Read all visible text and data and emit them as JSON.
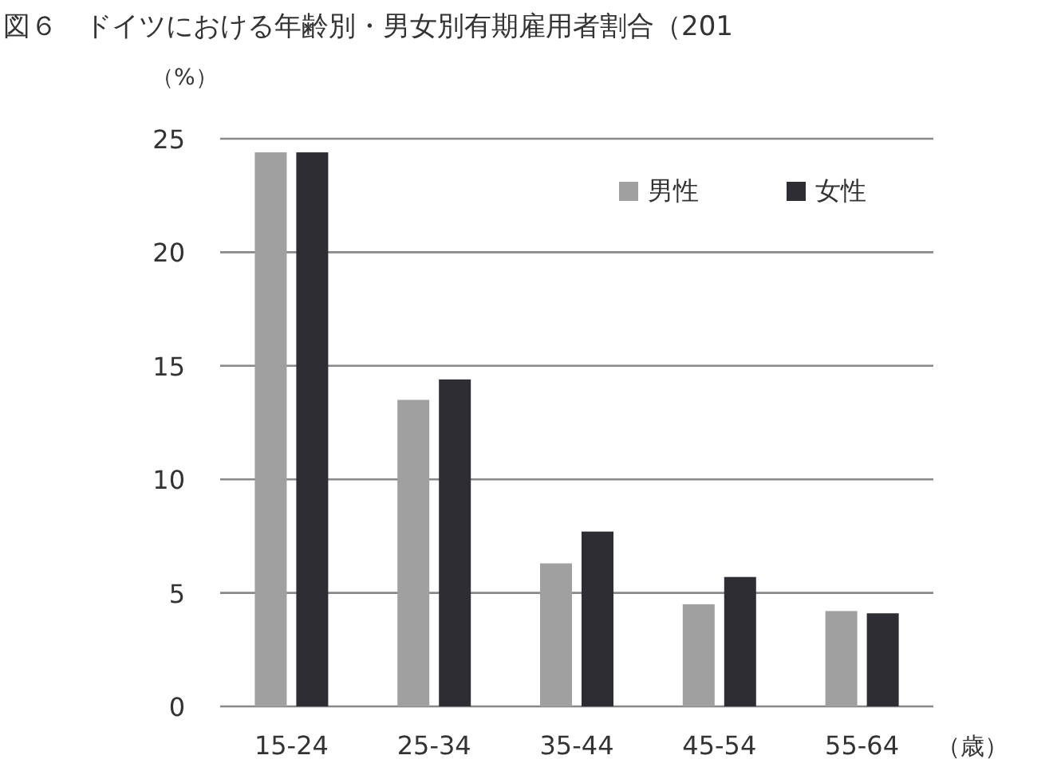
{
  "chart_data": {
    "type": "bar",
    "title": "図６　ドイツにおける年齢別・男女別有期雇用者割合（201",
    "ylabel": "（%）",
    "xlabel": "（歳）",
    "categories": [
      "15-24",
      "25-34",
      "35-44",
      "45-54",
      "55-64"
    ],
    "series": [
      {
        "name": "男性",
        "color": "#a0a0a0",
        "values": [
          24.4,
          13.5,
          6.3,
          4.5,
          4.2
        ]
      },
      {
        "name": "女性",
        "color": "#2d2d33",
        "values": [
          24.4,
          14.4,
          7.7,
          5.7,
          4.1
        ]
      }
    ],
    "ylim": [
      0,
      25
    ],
    "yticks": [
      0,
      5,
      10,
      15,
      20,
      25
    ],
    "grid": "y",
    "legend": "top right"
  }
}
